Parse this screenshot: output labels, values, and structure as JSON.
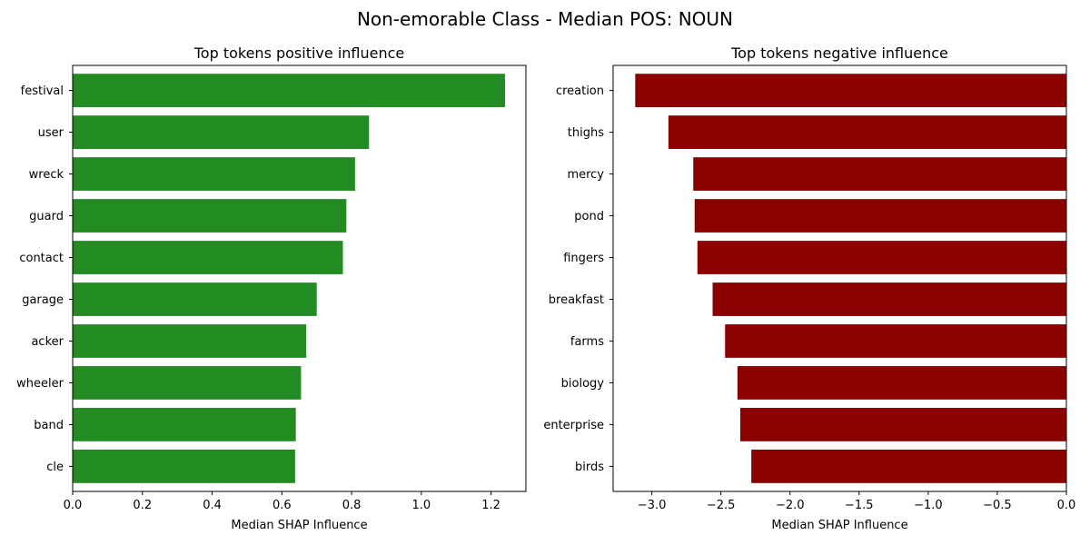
{
  "figure_title": "Non-emorable Class - Median POS: NOUN",
  "chart_data": [
    {
      "type": "bar",
      "orientation": "horizontal",
      "title": "Top tokens positive influence",
      "xlabel": "Median SHAP Influence",
      "ylabel": "",
      "categories": [
        "festival",
        "user",
        "wreck",
        "guard",
        "contact",
        "garage",
        "acker",
        "wheeler",
        "band",
        "cle"
      ],
      "values": [
        1.24,
        0.85,
        0.81,
        0.785,
        0.775,
        0.7,
        0.67,
        0.655,
        0.64,
        0.638
      ],
      "xlim": [
        0,
        1.3
      ],
      "xticks": [
        0.0,
        0.2,
        0.4,
        0.6,
        0.8,
        1.0,
        1.2
      ],
      "xtick_labels": [
        "0.0",
        "0.2",
        "0.4",
        "0.6",
        "0.8",
        "1.0",
        "1.2"
      ],
      "color": "#228b22",
      "grid": false
    },
    {
      "type": "bar",
      "orientation": "horizontal",
      "title": "Top tokens negative influence",
      "xlabel": "Median SHAP Influence",
      "ylabel": "",
      "categories": [
        "creation",
        "thighs",
        "mercy",
        "pond",
        "fingers",
        "breakfast",
        "farms",
        "biology",
        "enterprise",
        "birds"
      ],
      "values": [
        -3.12,
        -2.88,
        -2.7,
        -2.69,
        -2.67,
        -2.56,
        -2.47,
        -2.38,
        -2.36,
        -2.28
      ],
      "xlim": [
        -3.28,
        0
      ],
      "xticks": [
        -3.0,
        -2.5,
        -2.0,
        -1.5,
        -1.0,
        -0.5,
        0.0
      ],
      "xtick_labels": [
        "−3.0",
        "−2.5",
        "−2.0",
        "−1.5",
        "−1.0",
        "−0.5",
        "0.0"
      ],
      "color": "#8b0000",
      "grid": false
    }
  ]
}
